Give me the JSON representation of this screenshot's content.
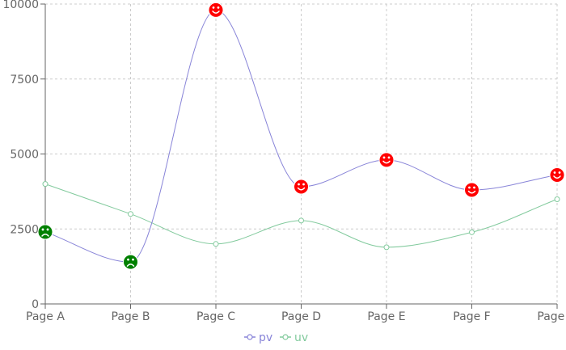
{
  "chart_data": {
    "type": "line",
    "title": "",
    "xlabel": "",
    "ylabel": "",
    "categories": [
      "Page A",
      "Page B",
      "Page C",
      "Page D",
      "Page E",
      "Page F",
      "Page G"
    ],
    "ylim": [
      0,
      10000
    ],
    "yticks": [
      0,
      2500,
      5000,
      7500,
      10000
    ],
    "grid": true,
    "legend_position": "bottom",
    "series": [
      {
        "name": "pv",
        "color": "#8884d8",
        "values": [
          2400,
          1398,
          9800,
          3908,
          4800,
          3800,
          4300
        ],
        "point_icons": [
          "frown-icon",
          "frown-icon",
          "smile-icon",
          "smile-icon",
          "smile-icon",
          "smile-icon",
          "smile-icon"
        ]
      },
      {
        "name": "uv",
        "color": "#82ca9d",
        "values": [
          4000,
          3000,
          2000,
          2780,
          1890,
          2390,
          3490
        ]
      }
    ],
    "icon_colors": {
      "smile-icon": "#ff0000",
      "frown-icon": "#008000"
    }
  }
}
